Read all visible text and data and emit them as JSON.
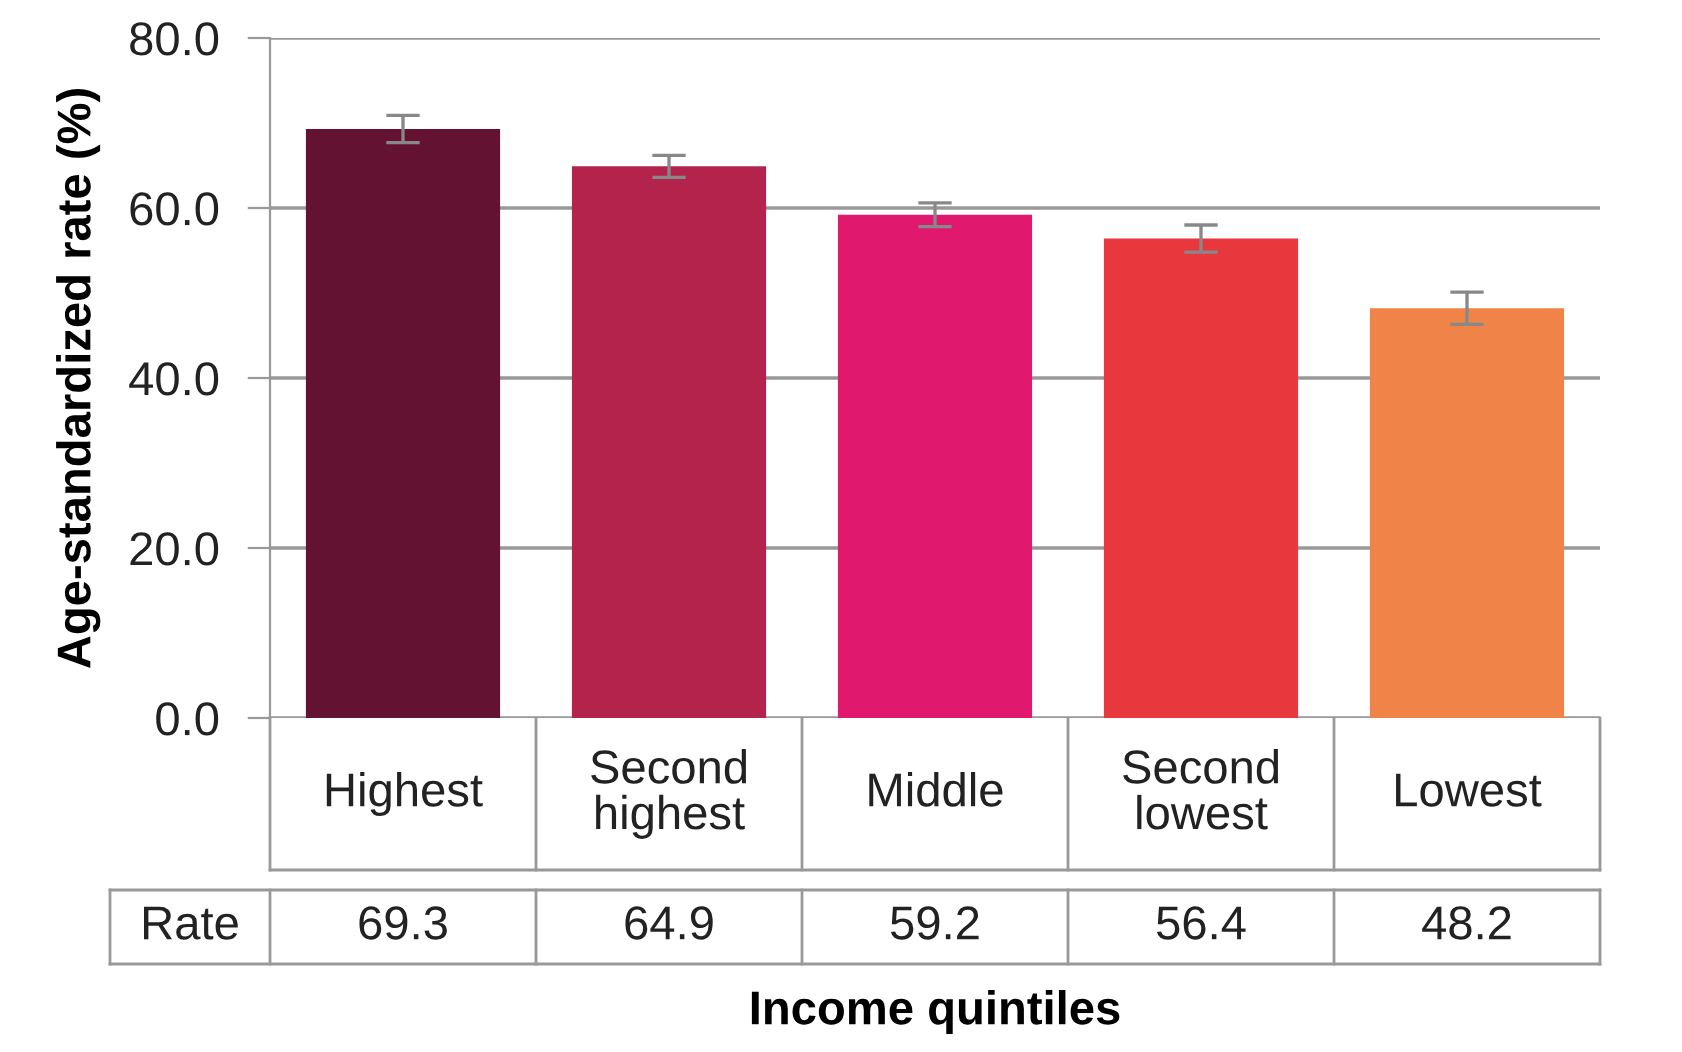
{
  "chart_data": {
    "type": "bar",
    "xlabel": "Income quintiles",
    "ylabel": "Age-standardized rate (%)",
    "categories": [
      "Highest",
      "Second\nhighest",
      "Middle",
      "Second\nlowest",
      "Lowest"
    ],
    "values": [
      69.3,
      64.9,
      59.2,
      56.4,
      48.2
    ],
    "errors": [
      1.6,
      1.3,
      1.4,
      1.6,
      1.9
    ],
    "colors": [
      "#641232",
      "#b3234b",
      "#e0196e",
      "#e8373d",
      "#f08448"
    ],
    "ylim": [
      0,
      80
    ],
    "yticks": [
      {
        "value": 0,
        "label": "0.0"
      },
      {
        "value": 20,
        "label": "20.0"
      },
      {
        "value": 40,
        "label": "40.0"
      },
      {
        "value": 60,
        "label": "60.0"
      },
      {
        "value": 80,
        "label": "80.0"
      }
    ],
    "grid": "y",
    "data_labels": true,
    "annotations": [
      "Rate"
    ]
  }
}
